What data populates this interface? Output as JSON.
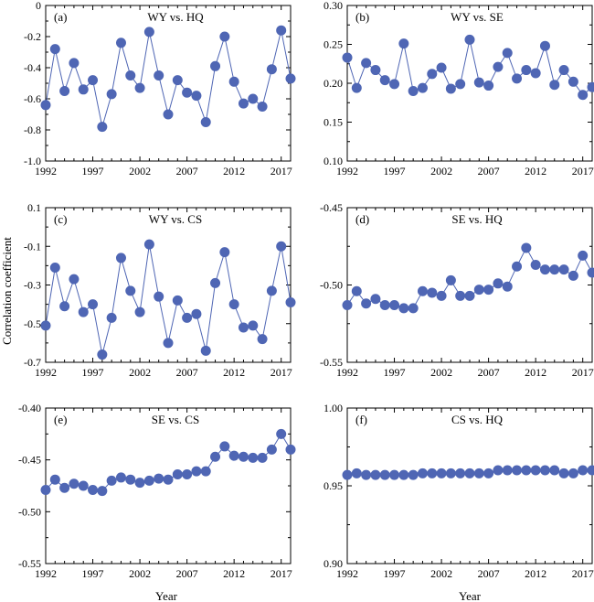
{
  "figure": {
    "y_axis_label": "Correlation coefficient",
    "x_axis_label": "Year"
  },
  "style": {
    "marker_color": "#4f66b4",
    "line_color": "#4f66b4",
    "axis_color": "#000000"
  },
  "chart_data": [
    {
      "type": "line",
      "panel": "(a)",
      "title": "WY vs. HQ",
      "x": [
        1992,
        1993,
        1994,
        1995,
        1996,
        1997,
        1998,
        1999,
        2000,
        2001,
        2002,
        2003,
        2004,
        2005,
        2006,
        2007,
        2008,
        2009,
        2010,
        2011,
        2012,
        2013,
        2014,
        2015,
        2016,
        2017,
        2018
      ],
      "values": [
        -0.64,
        -0.28,
        -0.55,
        -0.37,
        -0.54,
        -0.48,
        -0.78,
        -0.57,
        -0.24,
        -0.45,
        -0.53,
        -0.17,
        -0.45,
        -0.7,
        -0.48,
        -0.56,
        -0.58,
        -0.75,
        -0.39,
        -0.2,
        -0.49,
        -0.63,
        -0.6,
        -0.65,
        -0.41,
        -0.16,
        -0.47
      ],
      "ylim": [
        -1.0,
        0.0
      ],
      "yticks": [
        "0",
        "-0.2",
        "-0.4",
        "-0.6",
        "-0.8",
        "-1.0"
      ],
      "ytick_values": [
        0,
        -0.2,
        -0.4,
        -0.6,
        -0.8,
        -1.0
      ],
      "xticks": [
        "1992",
        "1997",
        "2002",
        "2007",
        "2012",
        "2017"
      ]
    },
    {
      "type": "line",
      "panel": "(b)",
      "title": "WY vs. SE",
      "x": [
        1992,
        1993,
        1994,
        1995,
        1996,
        1997,
        1998,
        1999,
        2000,
        2001,
        2002,
        2003,
        2004,
        2005,
        2006,
        2007,
        2008,
        2009,
        2010,
        2011,
        2012,
        2013,
        2014,
        2015,
        2016,
        2017,
        2018
      ],
      "values": [
        0.233,
        0.194,
        0.226,
        0.217,
        0.204,
        0.199,
        0.251,
        0.19,
        0.194,
        0.212,
        0.22,
        0.193,
        0.199,
        0.256,
        0.201,
        0.197,
        0.221,
        0.239,
        0.206,
        0.217,
        0.213,
        0.248,
        0.198,
        0.217,
        0.202,
        0.185,
        0.195
      ],
      "ylim": [
        0.1,
        0.3
      ],
      "yticks": [
        "0.30",
        "0.25",
        "0.20",
        "0.15",
        "0.10"
      ],
      "ytick_values": [
        0.3,
        0.25,
        0.2,
        0.15,
        0.1
      ],
      "xticks": [
        "1992",
        "1997",
        "2002",
        "2007",
        "2012",
        "2017"
      ]
    },
    {
      "type": "line",
      "panel": "(c)",
      "title": "WY vs. CS",
      "x": [
        1992,
        1993,
        1994,
        1995,
        1996,
        1997,
        1998,
        1999,
        2000,
        2001,
        2002,
        2003,
        2004,
        2005,
        2006,
        2007,
        2008,
        2009,
        2010,
        2011,
        2012,
        2013,
        2014,
        2015,
        2016,
        2017,
        2018
      ],
      "values": [
        -0.51,
        -0.21,
        -0.41,
        -0.27,
        -0.44,
        -0.4,
        -0.66,
        -0.47,
        -0.16,
        -0.33,
        -0.44,
        -0.09,
        -0.36,
        -0.6,
        -0.38,
        -0.47,
        -0.45,
        -0.64,
        -0.29,
        -0.13,
        -0.4,
        -0.52,
        -0.51,
        -0.58,
        -0.33,
        -0.1,
        -0.39
      ],
      "ylim": [
        -0.7,
        0.1
      ],
      "yticks": [
        "0.1",
        "-0.1",
        "-0.3",
        "-0.5",
        "-0.7"
      ],
      "ytick_values": [
        0.1,
        -0.1,
        -0.3,
        -0.5,
        -0.7
      ],
      "xticks": [
        "1992",
        "1997",
        "2002",
        "2007",
        "2012",
        "2017"
      ]
    },
    {
      "type": "line",
      "panel": "(d)",
      "title": "SE vs. HQ",
      "x": [
        1992,
        1993,
        1994,
        1995,
        1996,
        1997,
        1998,
        1999,
        2000,
        2001,
        2002,
        2003,
        2004,
        2005,
        2006,
        2007,
        2008,
        2009,
        2010,
        2011,
        2012,
        2013,
        2014,
        2015,
        2016,
        2017,
        2018
      ],
      "values": [
        -0.513,
        -0.504,
        -0.512,
        -0.509,
        -0.513,
        -0.513,
        -0.515,
        -0.515,
        -0.504,
        -0.505,
        -0.507,
        -0.497,
        -0.507,
        -0.507,
        -0.503,
        -0.503,
        -0.499,
        -0.501,
        -0.488,
        -0.476,
        -0.487,
        -0.49,
        -0.49,
        -0.49,
        -0.494,
        -0.481,
        -0.492
      ],
      "ylim": [
        -0.55,
        -0.45
      ],
      "yticks": [
        "-0.45",
        "-0.50",
        "-0.55"
      ],
      "ytick_values": [
        -0.45,
        -0.5,
        -0.55
      ],
      "xticks": [
        "1992",
        "1997",
        "2002",
        "2007",
        "2012",
        "2017"
      ]
    },
    {
      "type": "line",
      "panel": "(e)",
      "title": "SE vs. CS",
      "x": [
        1992,
        1993,
        1994,
        1995,
        1996,
        1997,
        1998,
        1999,
        2000,
        2001,
        2002,
        2003,
        2004,
        2005,
        2006,
        2007,
        2008,
        2009,
        2010,
        2011,
        2012,
        2013,
        2014,
        2015,
        2016,
        2017,
        2018
      ],
      "values": [
        -0.479,
        -0.469,
        -0.477,
        -0.473,
        -0.475,
        -0.479,
        -0.48,
        -0.47,
        -0.467,
        -0.469,
        -0.472,
        -0.47,
        -0.468,
        -0.469,
        -0.464,
        -0.464,
        -0.461,
        -0.461,
        -0.447,
        -0.437,
        -0.446,
        -0.447,
        -0.448,
        -0.448,
        -0.44,
        -0.425,
        -0.44
      ],
      "ylim": [
        -0.55,
        -0.4
      ],
      "yticks": [
        "-0.40",
        "-0.45",
        "-0.50",
        "-0.55"
      ],
      "ytick_values": [
        -0.4,
        -0.45,
        -0.5,
        -0.55
      ],
      "xticks": [
        "1992",
        "1997",
        "2002",
        "2007",
        "2012",
        "2017"
      ]
    },
    {
      "type": "line",
      "panel": "(f)",
      "title": "CS vs. HQ",
      "x": [
        1992,
        1993,
        1994,
        1995,
        1996,
        1997,
        1998,
        1999,
        2000,
        2001,
        2002,
        2003,
        2004,
        2005,
        2006,
        2007,
        2008,
        2009,
        2010,
        2011,
        2012,
        2013,
        2014,
        2015,
        2016,
        2017,
        2018
      ],
      "values": [
        0.957,
        0.958,
        0.957,
        0.957,
        0.957,
        0.957,
        0.957,
        0.957,
        0.958,
        0.958,
        0.958,
        0.958,
        0.958,
        0.958,
        0.958,
        0.958,
        0.96,
        0.96,
        0.96,
        0.96,
        0.96,
        0.96,
        0.96,
        0.958,
        0.958,
        0.96,
        0.96
      ],
      "ylim": [
        0.9,
        1.0
      ],
      "yticks": [
        "1.00",
        "0.95",
        "0.90"
      ],
      "ytick_values": [
        1.0,
        0.95,
        0.9
      ],
      "xticks": [
        "1992",
        "1997",
        "2002",
        "2007",
        "2012",
        "2017"
      ]
    }
  ]
}
